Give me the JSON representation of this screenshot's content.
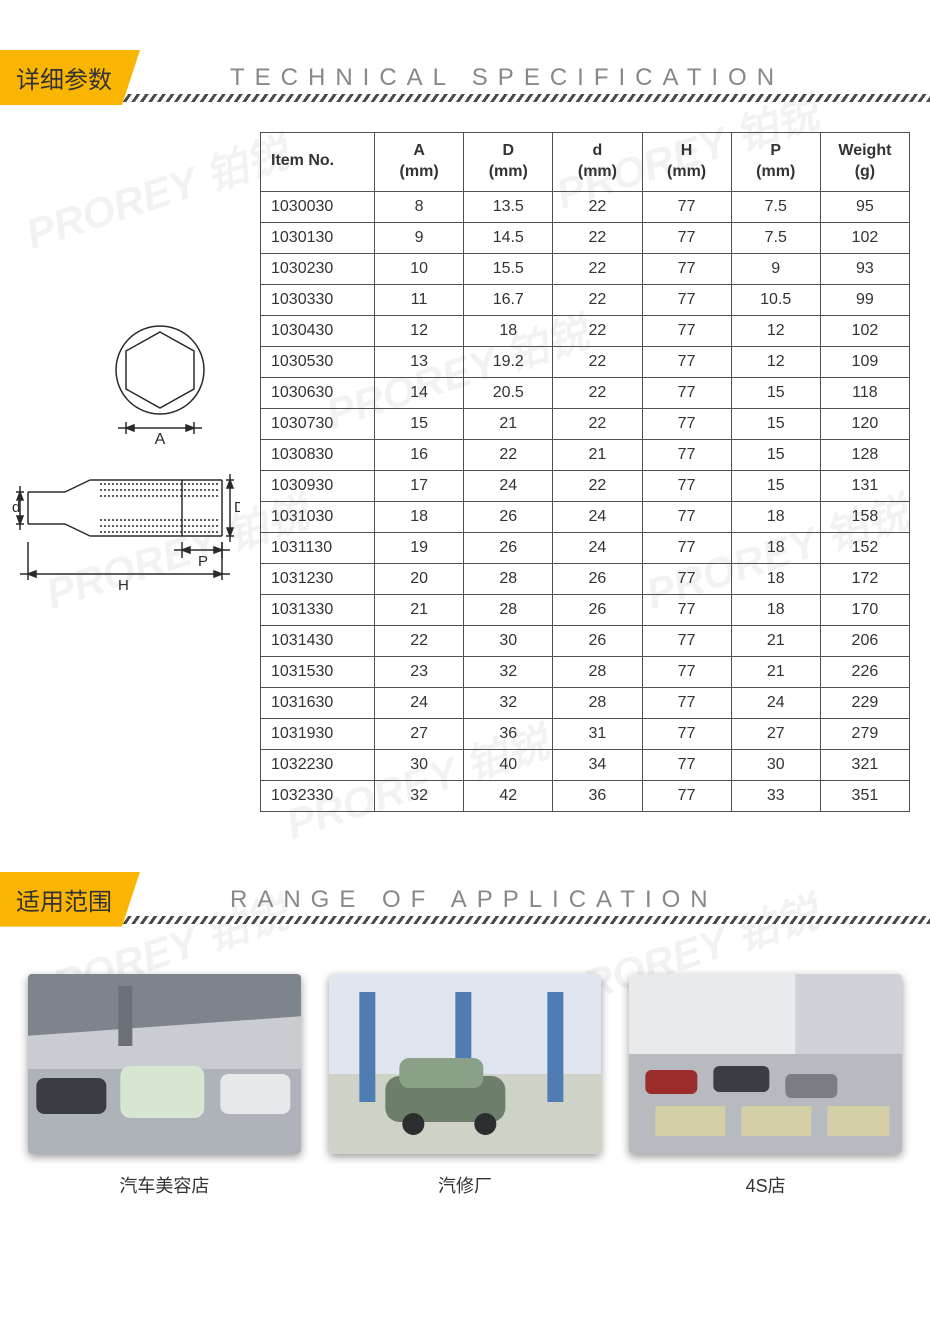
{
  "watermark_text": "PROREY 铂锐",
  "spec_section": {
    "header_cn": "详细参数",
    "header_en": "TECHNICAL SPECIFICATION",
    "table": {
      "columns": [
        "Item No.",
        "A\n(mm)",
        "D\n(mm)",
        "d\n(mm)",
        "H\n(mm)",
        "P\n(mm)",
        "Weight\n(g)"
      ],
      "rows": [
        [
          "1030030",
          "8",
          "13.5",
          "22",
          "77",
          "7.5",
          "95"
        ],
        [
          "1030130",
          "9",
          "14.5",
          "22",
          "77",
          "7.5",
          "102"
        ],
        [
          "1030230",
          "10",
          "15.5",
          "22",
          "77",
          "9",
          "93"
        ],
        [
          "1030330",
          "11",
          "16.7",
          "22",
          "77",
          "10.5",
          "99"
        ],
        [
          "1030430",
          "12",
          "18",
          "22",
          "77",
          "12",
          "102"
        ],
        [
          "1030530",
          "13",
          "19.2",
          "22",
          "77",
          "12",
          "109"
        ],
        [
          "1030630",
          "14",
          "20.5",
          "22",
          "77",
          "15",
          "118"
        ],
        [
          "1030730",
          "15",
          "21",
          "22",
          "77",
          "15",
          "120"
        ],
        [
          "1030830",
          "16",
          "22",
          "21",
          "77",
          "15",
          "128"
        ],
        [
          "1030930",
          "17",
          "24",
          "22",
          "77",
          "15",
          "131"
        ],
        [
          "1031030",
          "18",
          "26",
          "24",
          "77",
          "18",
          "158"
        ],
        [
          "1031130",
          "19",
          "26",
          "24",
          "77",
          "18",
          "152"
        ],
        [
          "1031230",
          "20",
          "28",
          "26",
          "77",
          "18",
          "172"
        ],
        [
          "1031330",
          "21",
          "28",
          "26",
          "77",
          "18",
          "170"
        ],
        [
          "1031430",
          "22",
          "30",
          "26",
          "77",
          "21",
          "206"
        ],
        [
          "1031530",
          "23",
          "32",
          "28",
          "77",
          "21",
          "226"
        ],
        [
          "1031630",
          "24",
          "32",
          "28",
          "77",
          "24",
          "229"
        ],
        [
          "1031930",
          "27",
          "36",
          "31",
          "77",
          "27",
          "279"
        ],
        [
          "1032230",
          "30",
          "40",
          "34",
          "77",
          "30",
          "321"
        ],
        [
          "1032330",
          "32",
          "42",
          "36",
          "77",
          "33",
          "351"
        ]
      ],
      "border_color": "#505050",
      "header_bg": "#ffffff",
      "font_size": 16
    },
    "diagram_labels": {
      "A": "A",
      "D": "D",
      "d": "d",
      "H": "H",
      "P": "P"
    },
    "diagram_stroke": "#2a2a2a"
  },
  "app_section": {
    "header_cn": "适用范围",
    "header_en": "RANGE OF APPLICATION",
    "items": [
      {
        "label": "汽车美容店"
      },
      {
        "label": "汽修厂"
      },
      {
        "label": "4S店"
      }
    ]
  },
  "palette": {
    "yellow": "#f9b500",
    "grey_text": "#888888",
    "dark": "#333333"
  }
}
